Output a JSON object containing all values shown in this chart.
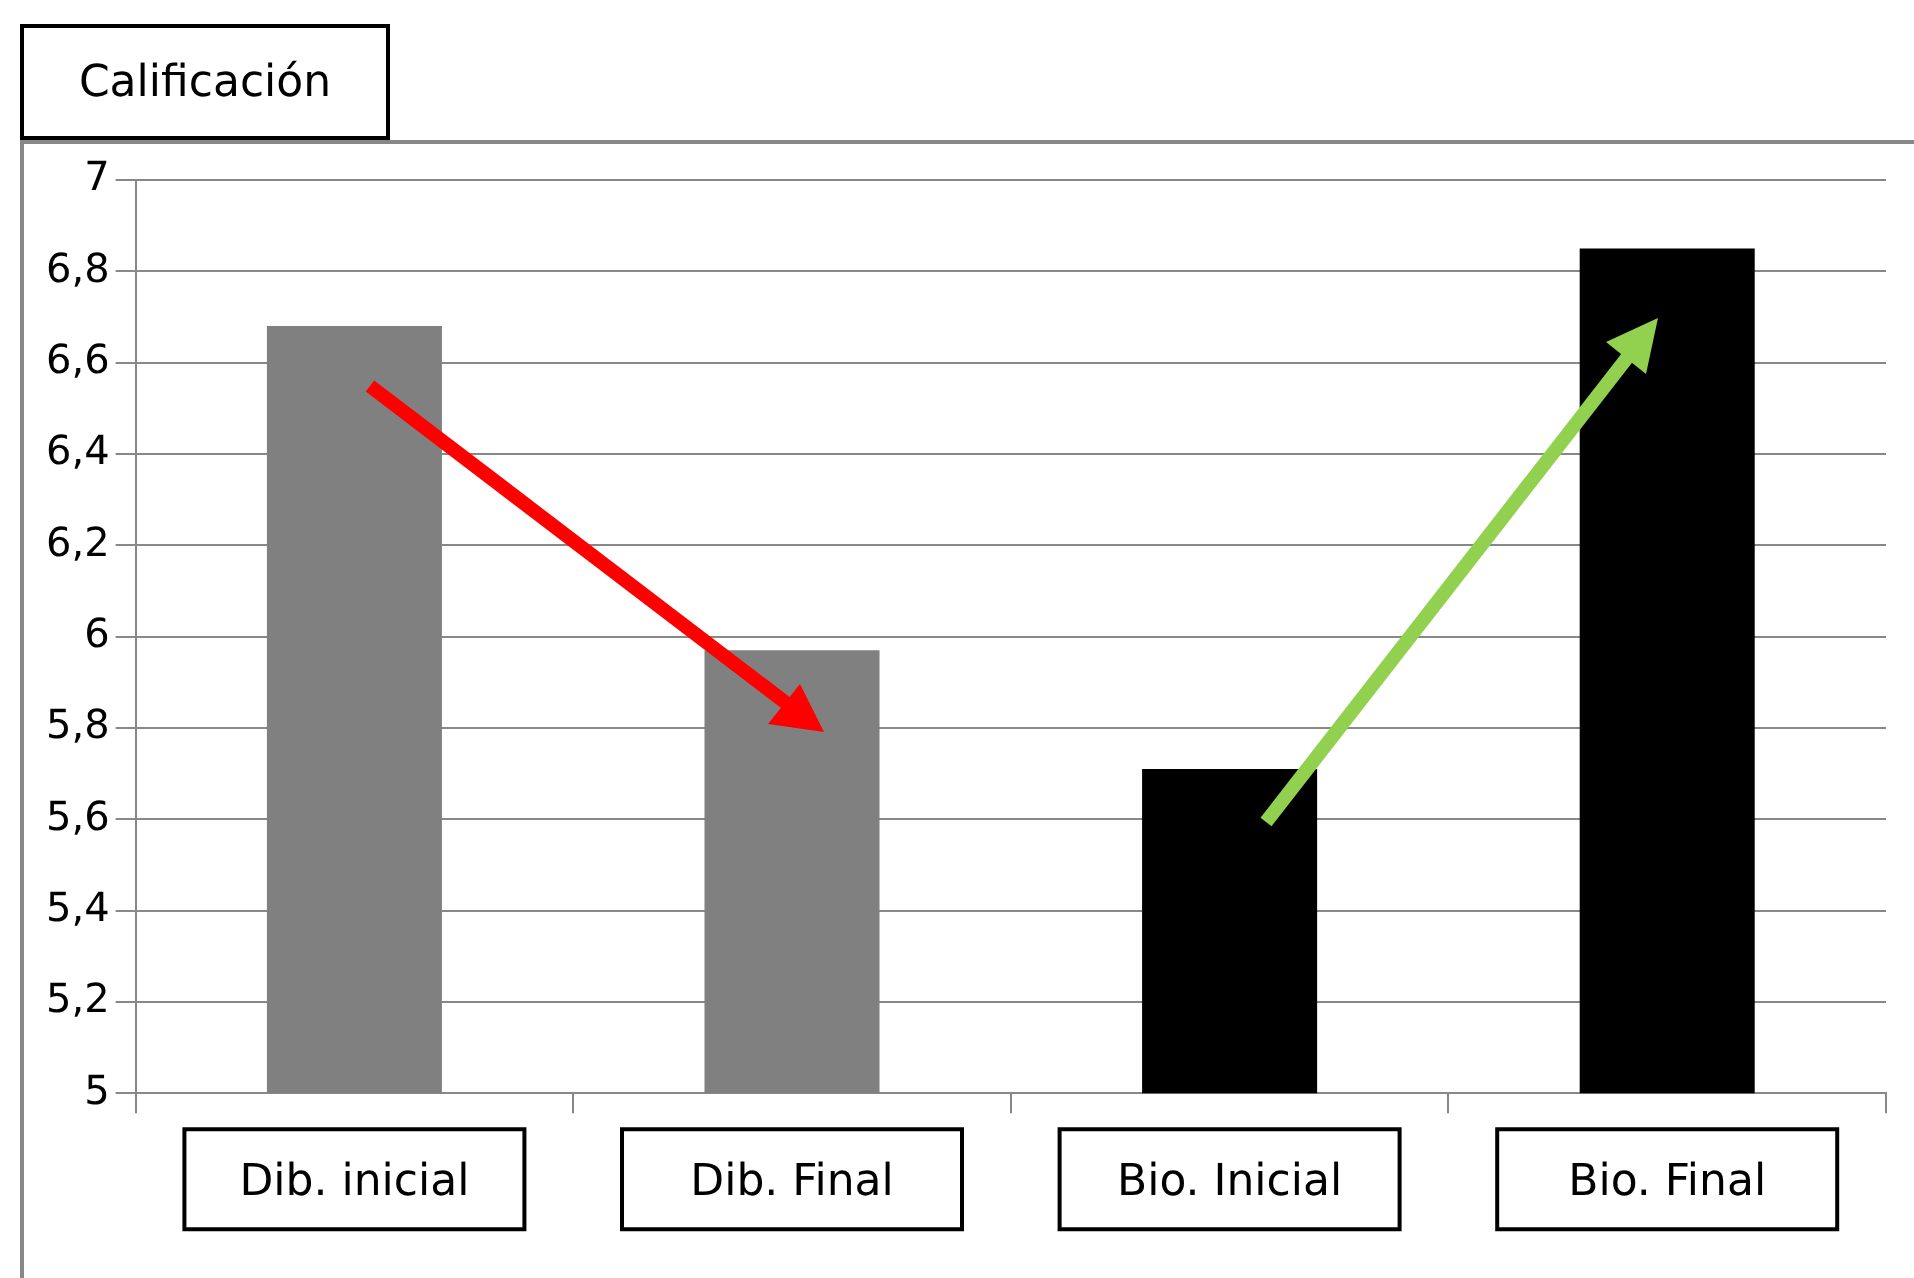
{
  "chart_data": {
    "type": "bar",
    "ylabel": "Calificación",
    "categories": [
      "Dib. inicial",
      "Dib. Final",
      "Bio. Inicial",
      "Bio. Final"
    ],
    "values": [
      6.68,
      5.97,
      5.71,
      6.85
    ],
    "colors": [
      "#808080",
      "#808080",
      "#000000",
      "#000000"
    ],
    "ylim": [
      5,
      7
    ],
    "yticks": [
      {
        "value": 5,
        "label": "5"
      },
      {
        "value": 5.2,
        "label": "5,2"
      },
      {
        "value": 5.4,
        "label": "5,4"
      },
      {
        "value": 5.6,
        "label": "5,6"
      },
      {
        "value": 5.8,
        "label": "5,8"
      },
      {
        "value": 6,
        "label": "6"
      },
      {
        "value": 6.2,
        "label": "6,2"
      },
      {
        "value": 6.4,
        "label": "6,4"
      },
      {
        "value": 6.6,
        "label": "6,6"
      },
      {
        "value": 6.8,
        "label": "6,8"
      },
      {
        "value": 7,
        "label": "7"
      }
    ],
    "grid": "y"
  }
}
